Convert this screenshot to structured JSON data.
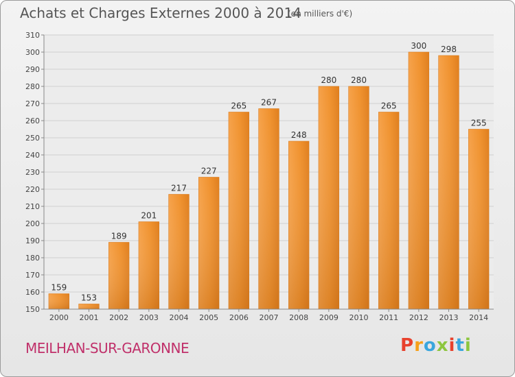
{
  "chart_data": {
    "type": "bar",
    "title": "Achats et Charges Externes 2000 à 2014",
    "unit": "(en milliers d'€)",
    "categories": [
      "2000",
      "2001",
      "2002",
      "2003",
      "2004",
      "2005",
      "2006",
      "2007",
      "2008",
      "2009",
      "2010",
      "2011",
      "2012",
      "2013",
      "2014"
    ],
    "values": [
      159,
      153,
      189,
      201,
      217,
      227,
      265,
      267,
      248,
      280,
      280,
      265,
      300,
      298,
      255
    ],
    "ylim": [
      150,
      310
    ],
    "yticks": [
      150,
      160,
      170,
      180,
      190,
      200,
      210,
      220,
      230,
      240,
      250,
      260,
      270,
      280,
      290,
      300,
      310
    ],
    "grid": true,
    "bar_color": "#f0922e"
  },
  "footer": {
    "commune": "MEILHAN-SUR-GARONNE",
    "brand": "Proxiti",
    "brand_colors": [
      "#e8412c",
      "#f6a01a",
      "#3aa6dd",
      "#8dc63f",
      "#e8412c",
      "#3aa6dd",
      "#8dc63f"
    ]
  }
}
